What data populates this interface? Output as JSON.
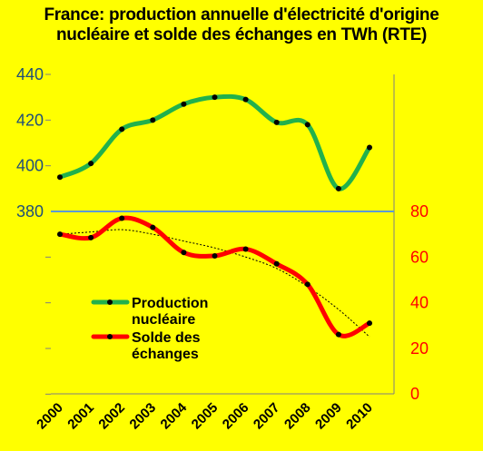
{
  "title_line1": "France: production annuelle d'électricité  d'origine",
  "title_line2": "nucléaire et solde des échanges en TWh (RTE)",
  "chart_data": {
    "type": "line",
    "categories": [
      "2000",
      "2001",
      "2002",
      "2003",
      "2004",
      "2005",
      "2006",
      "2007",
      "2008",
      "2009",
      "2010"
    ],
    "series": [
      {
        "name": "Production nucléaire",
        "axis": "left",
        "color": "#22b14c",
        "values": [
          395,
          401,
          416,
          420,
          427,
          430,
          429,
          419,
          418,
          390,
          408
        ]
      },
      {
        "name": "Solde des échanges",
        "axis": "right",
        "color": "#ff0000",
        "values": [
          70,
          68.5,
          77,
          73,
          62,
          60.5,
          63.5,
          57,
          48,
          26,
          31
        ]
      }
    ],
    "trend_values": [
      70,
      71,
      72,
      70,
      67,
      64,
      60,
      55,
      47,
      37,
      25
    ],
    "left_axis": {
      "min": 380,
      "max": 440,
      "ticks": [
        "440",
        "420",
        "400",
        "380"
      ],
      "color": "#1f4e79"
    },
    "right_axis": {
      "min": 0,
      "max": 80,
      "ticks": [
        "80",
        "60",
        "40",
        "20",
        "0"
      ],
      "color": "#ff0000"
    },
    "legend": [
      "Production",
      "nucléaire",
      "Solde des",
      "échanges"
    ]
  }
}
